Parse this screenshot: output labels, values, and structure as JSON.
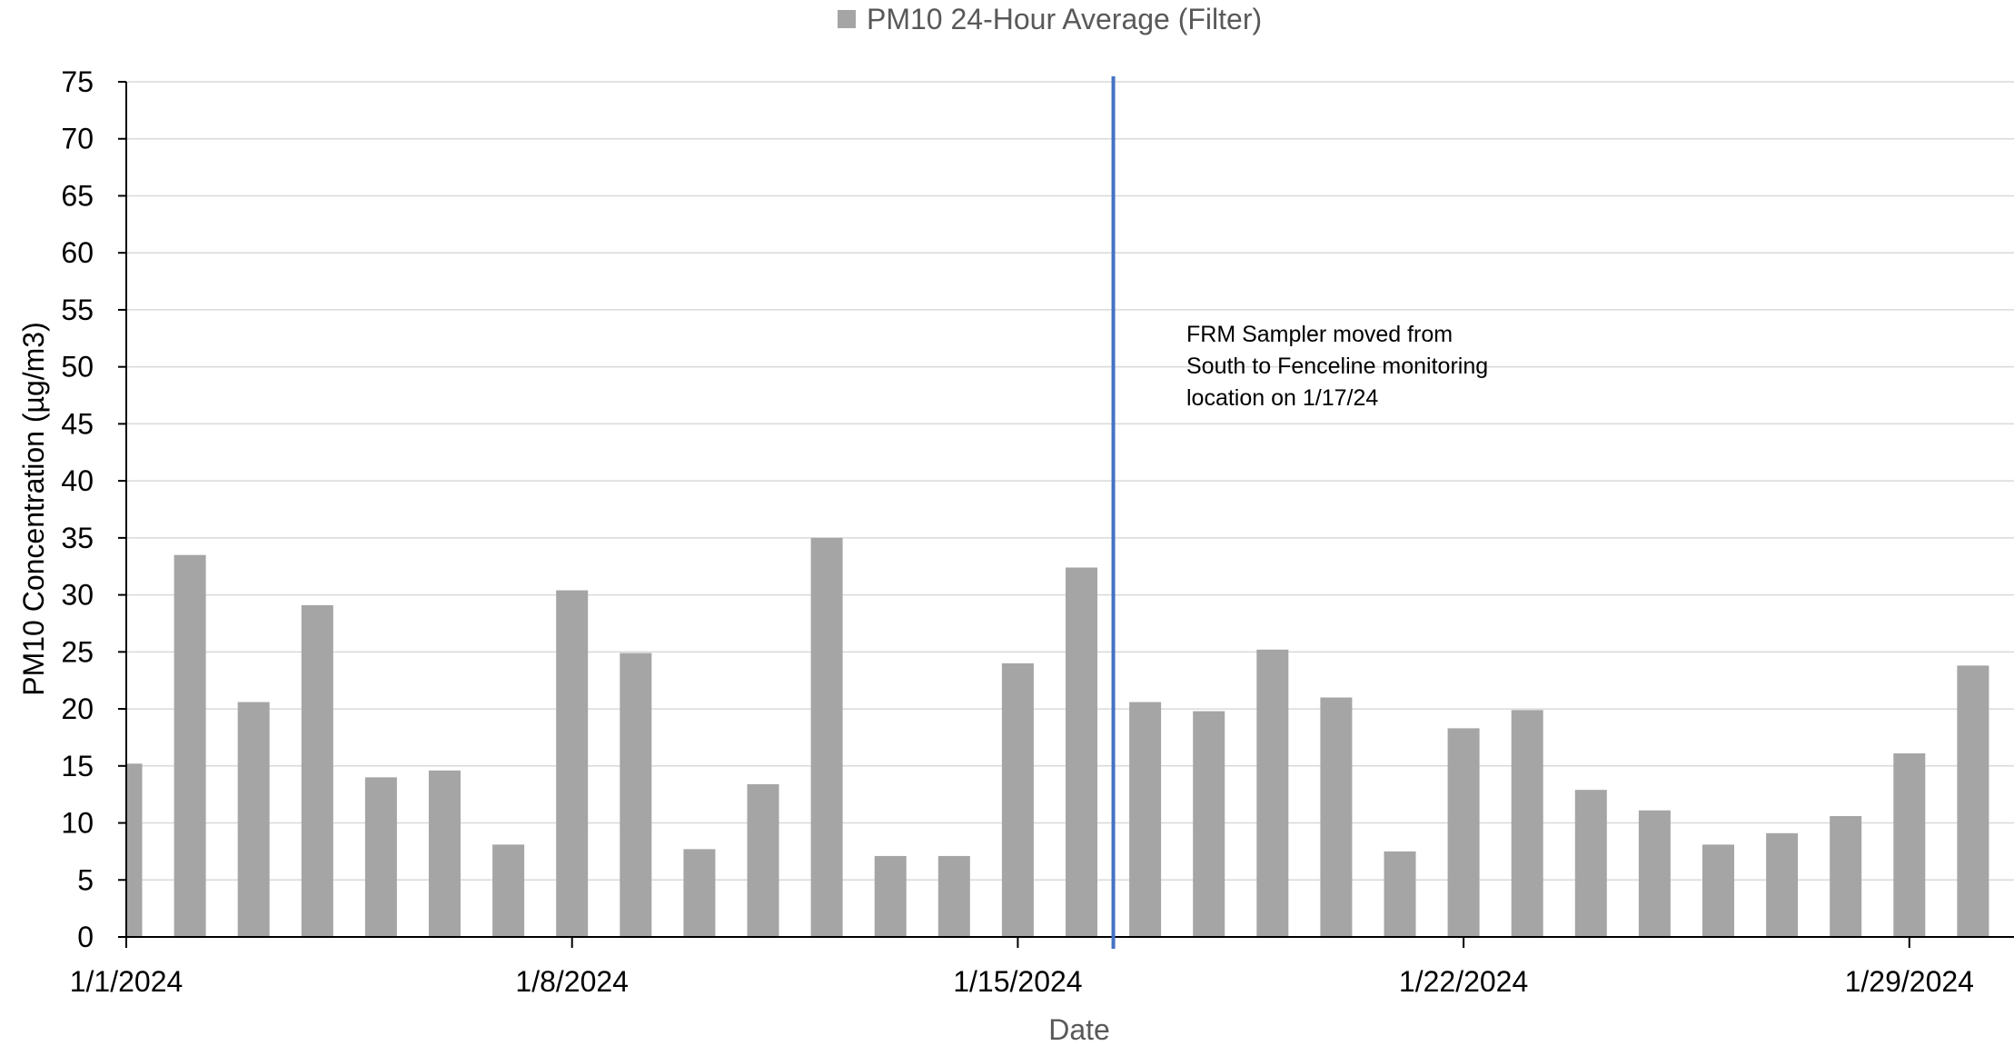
{
  "chart_data": {
    "type": "bar",
    "title": "",
    "xlabel": "Date",
    "ylabel": "PM10 Concentration (µg/m3)",
    "ylim": [
      0,
      75
    ],
    "y_ticks": [
      0,
      5,
      10,
      15,
      20,
      25,
      30,
      35,
      40,
      45,
      50,
      55,
      60,
      65,
      70,
      75
    ],
    "x_range": [
      "2024-01-01",
      "2024-01-30"
    ],
    "x_tick_labels": [
      {
        "date": "2024-01-01",
        "label": "1/1/2024"
      },
      {
        "date": "2024-01-08",
        "label": "1/8/2024"
      },
      {
        "date": "2024-01-15",
        "label": "1/15/2024"
      },
      {
        "date": "2024-01-22",
        "label": "1/22/2024"
      },
      {
        "date": "2024-01-29",
        "label": "1/29/2024"
      }
    ],
    "grid": true,
    "legend_position": "top-center",
    "colors": {
      "bar": "#a5a5a5",
      "marker_line": "#4472c4",
      "grid": "#d9d9d9",
      "axis": "#000000",
      "axis_title": "#595959"
    },
    "series": [
      {
        "name": "PM10 24-Hour Average (Filter)",
        "points": [
          {
            "date": "2024-01-01",
            "value": 15.2
          },
          {
            "date": "2024-01-02",
            "value": 33.5
          },
          {
            "date": "2024-01-03",
            "value": 20.6
          },
          {
            "date": "2024-01-04",
            "value": 29.1
          },
          {
            "date": "2024-01-05",
            "value": 14.0
          },
          {
            "date": "2024-01-06",
            "value": 14.6
          },
          {
            "date": "2024-01-07",
            "value": 8.1
          },
          {
            "date": "2024-01-08",
            "value": 30.4
          },
          {
            "date": "2024-01-09",
            "value": 24.9
          },
          {
            "date": "2024-01-10",
            "value": 7.7
          },
          {
            "date": "2024-01-11",
            "value": 13.4
          },
          {
            "date": "2024-01-12",
            "value": 35.0
          },
          {
            "date": "2024-01-13",
            "value": 7.1
          },
          {
            "date": "2024-01-14",
            "value": 7.1
          },
          {
            "date": "2024-01-15",
            "value": 24.0
          },
          {
            "date": "2024-01-16",
            "value": 32.4
          },
          {
            "date": "2024-01-17",
            "value": 20.6
          },
          {
            "date": "2024-01-18",
            "value": 19.8
          },
          {
            "date": "2024-01-19",
            "value": 25.2
          },
          {
            "date": "2024-01-20",
            "value": 21.0
          },
          {
            "date": "2024-01-21",
            "value": 7.5
          },
          {
            "date": "2024-01-22",
            "value": 18.3
          },
          {
            "date": "2024-01-23",
            "value": 19.9
          },
          {
            "date": "2024-01-24",
            "value": 12.9
          },
          {
            "date": "2024-01-25",
            "value": 11.1
          },
          {
            "date": "2024-01-26",
            "value": 8.1
          },
          {
            "date": "2024-01-27",
            "value": 9.1
          },
          {
            "date": "2024-01-28",
            "value": 10.6
          },
          {
            "date": "2024-01-29",
            "value": 16.1
          },
          {
            "date": "2024-01-30",
            "value": 23.8
          }
        ]
      }
    ],
    "reference_line": {
      "date": "2024-01-16",
      "position": "between 1/16 and 1/17"
    },
    "annotation": {
      "lines": [
        "FRM Sampler moved from",
        "South to Fenceline monitoring",
        "location on 1/17/24"
      ]
    }
  }
}
